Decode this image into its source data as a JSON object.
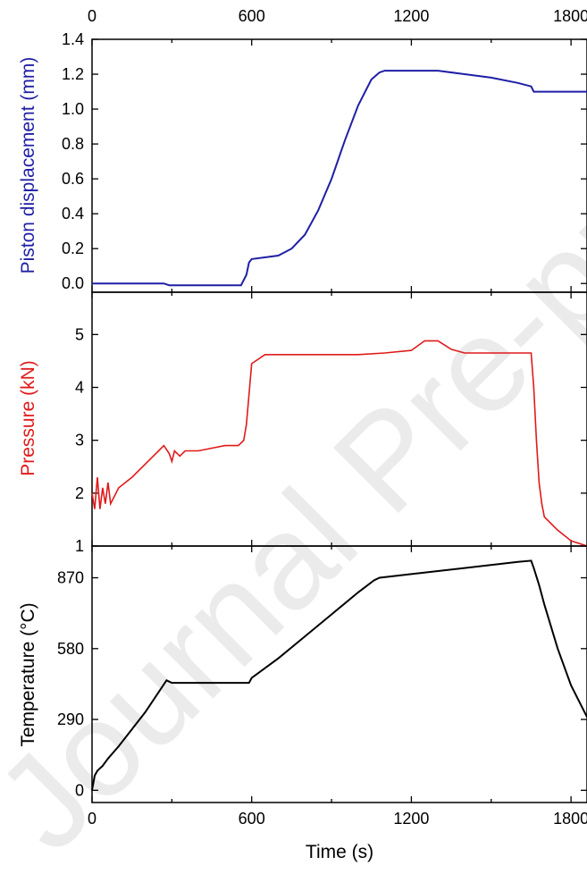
{
  "chart_data": [
    {
      "type": "line",
      "ylabel": "Piston displacement (mm)",
      "ylabel_color": "#1f1fa6",
      "line_color": "#1f1fa6",
      "xlim": [
        0,
        1860
      ],
      "ylim": [
        -0.05,
        1.4
      ],
      "x_ticks": [
        0,
        600,
        1200,
        1800
      ],
      "x_tick_labels": [
        "0",
        "600",
        "1200",
        "1800"
      ],
      "y_ticks": [
        0.0,
        0.2,
        0.4,
        0.6,
        0.8,
        1.0,
        1.2,
        1.4
      ],
      "y_tick_labels": [
        "0.0",
        "0.2",
        "0.4",
        "0.6",
        "0.8",
        "1.0",
        "1.2",
        "1.4"
      ],
      "series": [
        {
          "x": [
            0,
            270,
            290,
            560,
            580,
            590,
            600,
            700,
            750,
            800,
            850,
            900,
            950,
            1000,
            1050,
            1080,
            1100,
            1200,
            1300,
            1400,
            1500,
            1600,
            1650,
            1660,
            1860
          ],
          "values": [
            0.0,
            0.0,
            -0.01,
            -0.01,
            0.05,
            0.12,
            0.14,
            0.16,
            0.2,
            0.28,
            0.42,
            0.6,
            0.82,
            1.02,
            1.17,
            1.21,
            1.22,
            1.22,
            1.22,
            1.2,
            1.18,
            1.15,
            1.13,
            1.1,
            1.1
          ]
        }
      ]
    },
    {
      "type": "line",
      "ylabel": "Pressure (kN)",
      "ylabel_color": "#e01a1a",
      "line_color": "#e01a1a",
      "xlim": [
        0,
        1860
      ],
      "ylim": [
        1,
        5.8
      ],
      "y_ticks": [
        1,
        2,
        3,
        4,
        5
      ],
      "y_tick_labels": [
        "1",
        "2",
        "3",
        "4",
        "5"
      ],
      "series": [
        {
          "x": [
            0,
            10,
            20,
            30,
            40,
            50,
            60,
            70,
            100,
            150,
            200,
            250,
            270,
            290,
            300,
            310,
            330,
            350,
            400,
            450,
            500,
            550,
            570,
            580,
            600,
            650,
            700,
            800,
            900,
            1000,
            1100,
            1200,
            1250,
            1300,
            1350,
            1400,
            1500,
            1600,
            1650,
            1660,
            1670,
            1680,
            1690,
            1700,
            1750,
            1800,
            1860
          ],
          "values": [
            2.0,
            1.7,
            2.3,
            1.7,
            2.1,
            1.8,
            2.2,
            1.8,
            2.1,
            2.3,
            2.55,
            2.8,
            2.9,
            2.75,
            2.6,
            2.8,
            2.7,
            2.8,
            2.8,
            2.85,
            2.9,
            2.9,
            3.0,
            3.3,
            4.45,
            4.62,
            4.62,
            4.62,
            4.62,
            4.62,
            4.65,
            4.7,
            4.88,
            4.88,
            4.72,
            4.65,
            4.65,
            4.65,
            4.65,
            4.0,
            3.0,
            2.2,
            1.8,
            1.55,
            1.3,
            1.1,
            1.0
          ]
        }
      ]
    },
    {
      "type": "line",
      "ylabel": "Temperature (°C)",
      "ylabel_color": "#000000",
      "line_color": "#000000",
      "xlim": [
        0,
        1860
      ],
      "ylim": [
        -50,
        1000
      ],
      "x_ticks": [
        0,
        600,
        1200,
        1800
      ],
      "x_tick_labels": [
        "0",
        "600",
        "1200",
        "1800"
      ],
      "xlabel": "Time (s)",
      "y_ticks": [
        0,
        290,
        580,
        870
      ],
      "y_tick_labels": [
        "0",
        "290",
        "580",
        "870"
      ],
      "series": [
        {
          "x": [
            0,
            5,
            10,
            20,
            30,
            40,
            60,
            100,
            200,
            280,
            300,
            400,
            500,
            590,
            600,
            700,
            800,
            900,
            1000,
            1060,
            1080,
            1200,
            1400,
            1600,
            1650,
            1660,
            1680,
            1700,
            1750,
            1800,
            1860
          ],
          "values": [
            0,
            30,
            60,
            80,
            90,
            100,
            130,
            180,
            320,
            450,
            440,
            440,
            440,
            440,
            460,
            540,
            630,
            720,
            810,
            860,
            870,
            885,
            910,
            935,
            940,
            910,
            840,
            760,
            580,
            430,
            300
          ]
        }
      ]
    }
  ],
  "watermark": "Journal Pre-proof"
}
